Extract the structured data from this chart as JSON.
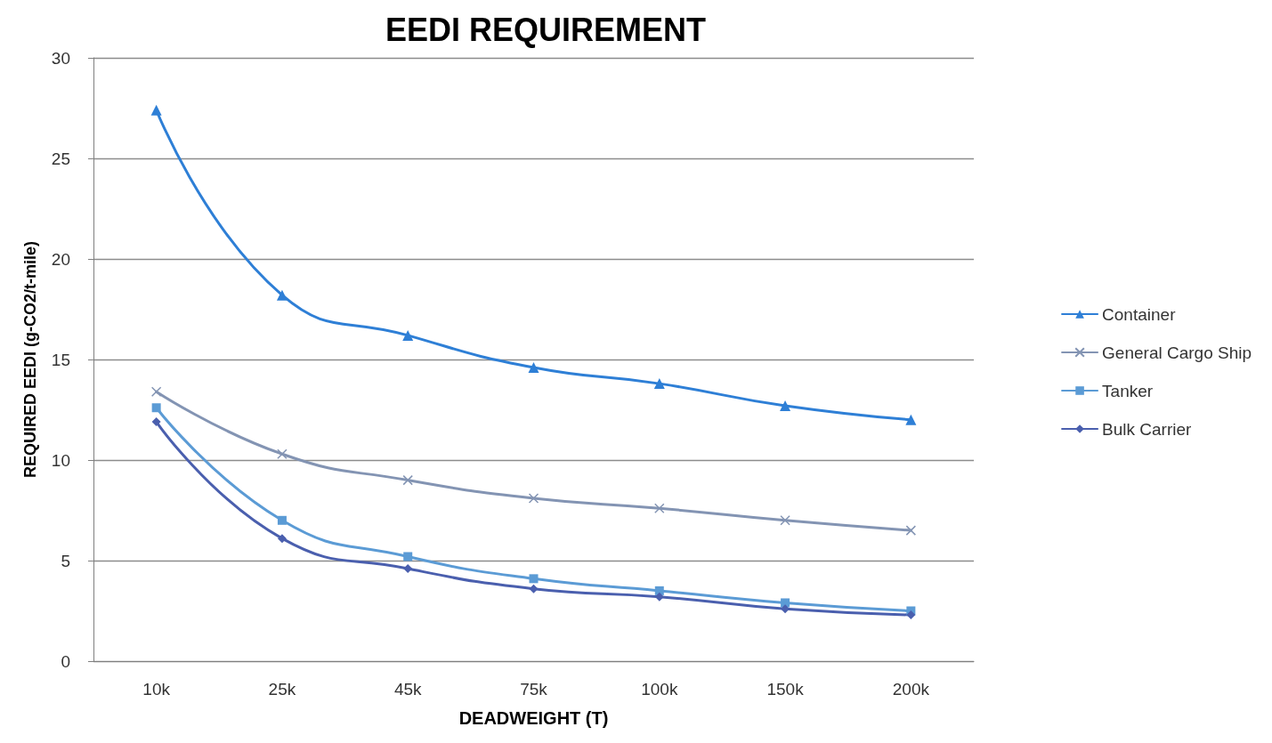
{
  "chart_data": {
    "type": "line",
    "title": "EEDI REQUIREMENT",
    "xlabel": "DEADWEIGHT (T)",
    "ylabel": "REQUIRED EEDI (g-CO2/t-mile)",
    "categories": [
      "10k",
      "25k",
      "45k",
      "75k",
      "100k",
      "150k",
      "200k"
    ],
    "series": [
      {
        "name": "Container",
        "color": "#2e7fd6",
        "marker": "triangle",
        "values": [
          27.4,
          18.2,
          16.2,
          14.6,
          13.8,
          12.7,
          12.0
        ]
      },
      {
        "name": "General Cargo Ship",
        "color": "#8394b3",
        "marker": "cross",
        "values": [
          13.4,
          10.3,
          9.0,
          8.1,
          7.6,
          7.0,
          6.5
        ]
      },
      {
        "name": "Tanker",
        "color": "#5b9bd5",
        "marker": "square",
        "values": [
          12.6,
          7.0,
          5.2,
          4.1,
          3.5,
          2.9,
          2.5
        ]
      },
      {
        "name": "Bulk Carrier",
        "color": "#4a5fae",
        "marker": "diamond",
        "values": [
          11.9,
          6.1,
          4.6,
          3.6,
          3.2,
          2.6,
          2.3
        ]
      }
    ],
    "ylim": [
      0,
      30
    ],
    "yticks": [
      0,
      5,
      10,
      15,
      20,
      25,
      30
    ],
    "grid": "y",
    "legend": "right",
    "line_style": "solid"
  }
}
